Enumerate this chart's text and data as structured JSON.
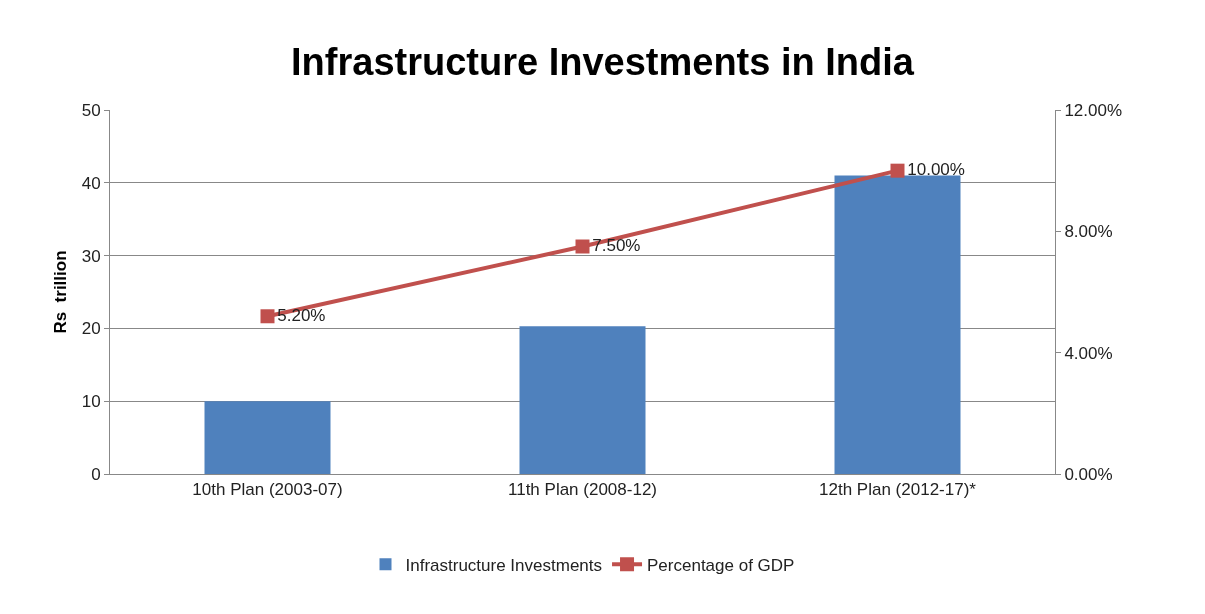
{
  "chart_data": {
    "type": "bar",
    "title": "Infrastructure Investments in India",
    "ylabel": "Rs  trillion",
    "categories": [
      "10th Plan (2003-07)",
      "11th Plan (2008-12)",
      "12th Plan (2012-17)*"
    ],
    "series": [
      {
        "name": "Infrastructure Investments",
        "color": "#4f81bd",
        "values": [
          10,
          20.3,
          41
        ]
      },
      {
        "name": "Percentage of GDP",
        "type": "line",
        "axis": "y2",
        "color": "#c0504d",
        "marker": "square",
        "values": [
          5.2,
          7.5,
          10
        ],
        "value_labels": [
          "5.20%",
          "7.50%",
          "10.00%"
        ]
      }
    ],
    "ylim": [
      0,
      50
    ],
    "yticks": [
      0,
      10,
      20,
      30,
      40,
      50
    ],
    "y2lim": [
      0,
      12
    ],
    "y2ticks": [
      {
        "value": 0,
        "label": "0.00%"
      },
      {
        "value": 4,
        "label": "4.00%"
      },
      {
        "value": 8,
        "label": "8.00%"
      },
      {
        "value": 12,
        "label": "12.00%"
      }
    ],
    "grid": "y",
    "legend": "bottom"
  }
}
